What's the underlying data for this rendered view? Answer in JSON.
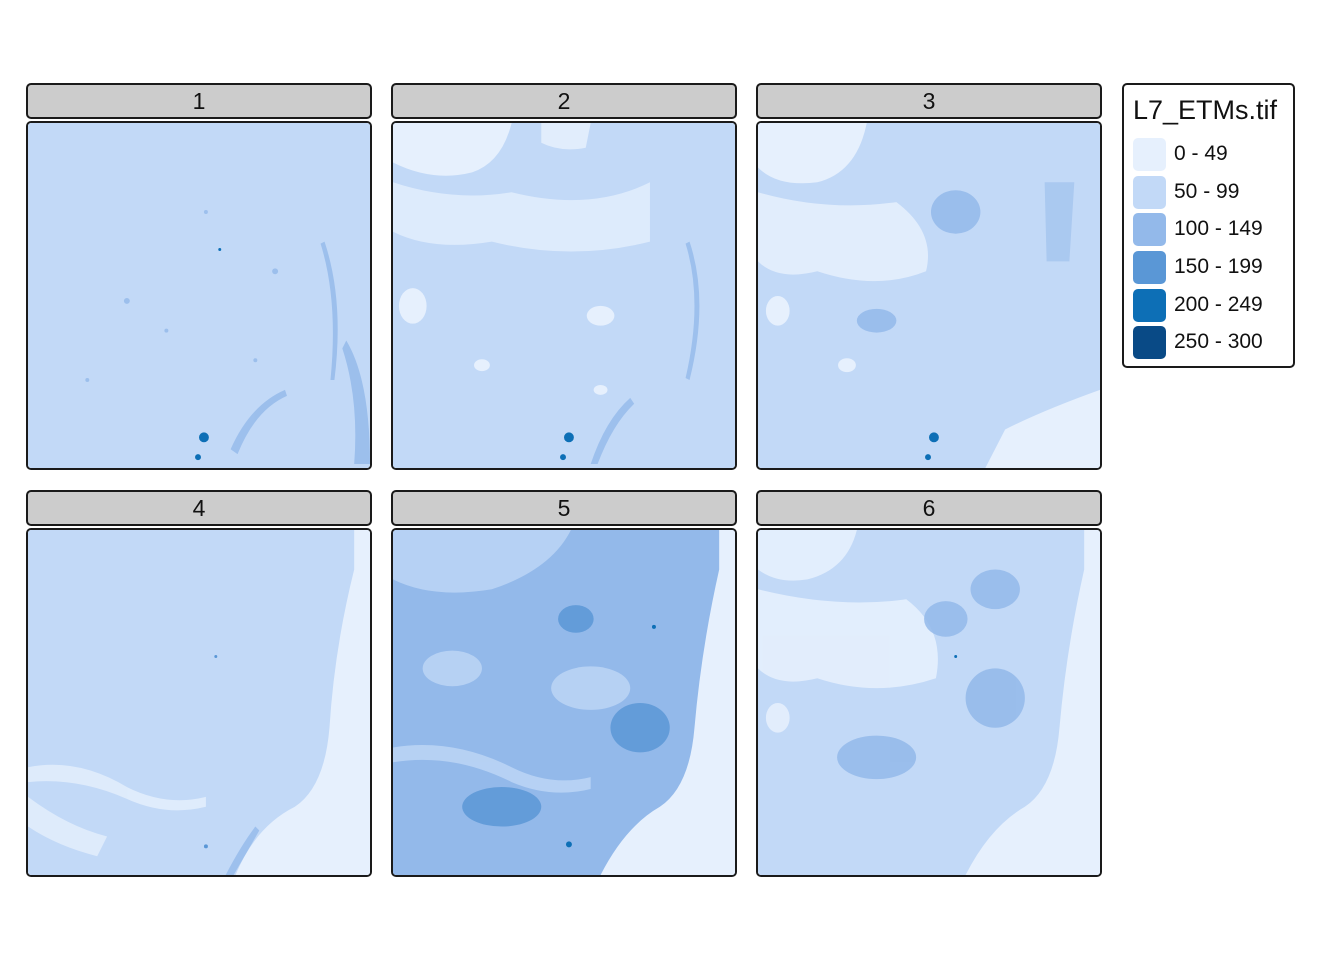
{
  "legend": {
    "title": "L7_ETMs.tif",
    "items": [
      {
        "label": "0 - 49",
        "color": "#e6f0fd"
      },
      {
        "label": "50 - 99",
        "color": "#c2d9f7"
      },
      {
        "label": "100 - 149",
        "color": "#93b9ea"
      },
      {
        "label": "150 - 199",
        "color": "#5a97d6"
      },
      {
        "label": "200 - 249",
        "color": "#0d6fb6"
      },
      {
        "label": "250 - 300",
        "color": "#094a86"
      }
    ]
  },
  "panels": [
    {
      "label": "1"
    },
    {
      "label": "2"
    },
    {
      "label": "3"
    },
    {
      "label": "4"
    },
    {
      "label": "5"
    },
    {
      "label": "6"
    }
  ]
}
